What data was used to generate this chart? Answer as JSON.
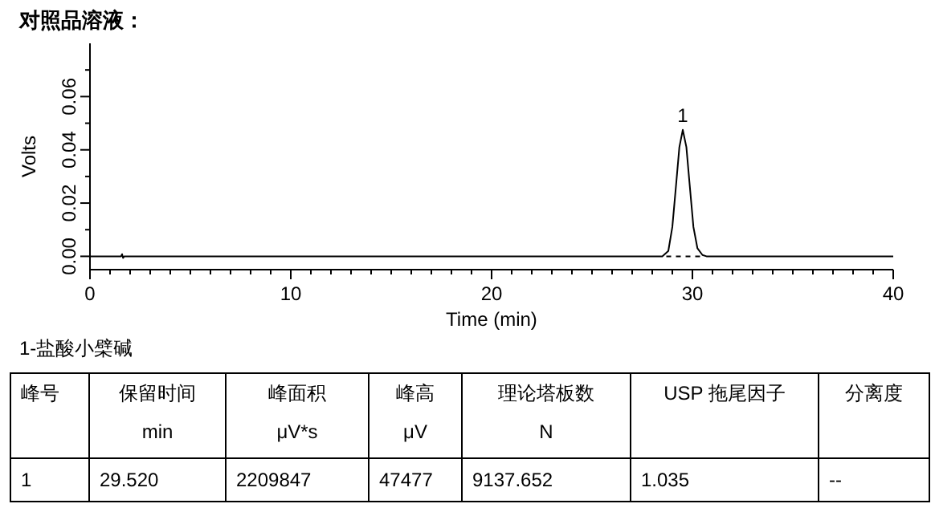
{
  "chart_data": {
    "type": "line",
    "title": "对照品溶液：",
    "xlabel": "Time (min)",
    "ylabel": "Volts",
    "xlim": [
      0,
      40
    ],
    "ylim": [
      -0.005,
      0.08
    ],
    "xticks": [
      0,
      {
        "value": 1,
        "label": null
      },
      {
        "value": 2,
        "label": null
      },
      {
        "value": 3,
        "label": null
      },
      {
        "value": 4,
        "label": null
      },
      {
        "value": 5,
        "label": null
      },
      {
        "value": 6,
        "label": null
      },
      {
        "value": 7,
        "label": null
      },
      {
        "value": 8,
        "label": null
      },
      {
        "value": 9,
        "label": null
      },
      10,
      {
        "value": 11,
        "label": null
      },
      {
        "value": 12,
        "label": null
      },
      {
        "value": 13,
        "label": null
      },
      {
        "value": 14,
        "label": null
      },
      {
        "value": 15,
        "label": null
      },
      {
        "value": 16,
        "label": null
      },
      {
        "value": 17,
        "label": null
      },
      {
        "value": 18,
        "label": null
      },
      {
        "value": 19,
        "label": null
      },
      20,
      {
        "value": 21,
        "label": null
      },
      {
        "value": 22,
        "label": null
      },
      {
        "value": 23,
        "label": null
      },
      {
        "value": 24,
        "label": null
      },
      {
        "value": 25,
        "label": null
      },
      {
        "value": 26,
        "label": null
      },
      {
        "value": 27,
        "label": null
      },
      {
        "value": 28,
        "label": null
      },
      {
        "value": 29,
        "label": null
      },
      30,
      {
        "value": 31,
        "label": null
      },
      {
        "value": 32,
        "label": null
      },
      {
        "value": 33,
        "label": null
      },
      {
        "value": 34,
        "label": null
      },
      {
        "value": 35,
        "label": null
      },
      {
        "value": 36,
        "label": null
      },
      {
        "value": 37,
        "label": null
      },
      {
        "value": 38,
        "label": null
      },
      {
        "value": 39,
        "label": null
      },
      40
    ],
    "yticks": [
      {
        "value": 0,
        "label": "0.00"
      },
      {
        "value": 0.01,
        "label": null
      },
      {
        "value": 0.02,
        "label": "0.02"
      },
      {
        "value": 0.03,
        "label": null
      },
      {
        "value": 0.04,
        "label": "0.04"
      },
      {
        "value": 0.05,
        "label": null
      },
      {
        "value": 0.06,
        "label": "0.06"
      },
      {
        "value": 0.07,
        "label": null
      }
    ],
    "grid": false,
    "marker": "none",
    "series": [
      {
        "color": "#000000",
        "line_style": "solid",
        "x": [
          0,
          1.55,
          1.6,
          1.65,
          1.7,
          28.5,
          28.8,
          29.0,
          29.2,
          29.35,
          29.52,
          29.7,
          29.85,
          30.05,
          30.25,
          30.5,
          30.7,
          40
        ],
        "values": [
          0,
          0,
          0.0008,
          -0.0006,
          0,
          0,
          0.002,
          0.011,
          0.028,
          0.041,
          0.0475,
          0.041,
          0.028,
          0.011,
          0.003,
          0.0005,
          0,
          0
        ]
      },
      {
        "color": "#000000",
        "line_style": "dashed",
        "x": [
          28.7,
          30.4
        ],
        "values": [
          0,
          0
        ]
      }
    ],
    "annotations": [
      {
        "text": "1",
        "x": 29.52,
        "y": 0.0475
      },
      "1-盐酸小檗碱",
      "峰号",
      "保留时间\nmin",
      "峰面积\nμV*s",
      "峰高\nμV",
      "理论塔板数\nN",
      "USP 拖尾因子",
      "分离度",
      "1",
      "29.520",
      "2209847",
      "47477",
      "9137.652",
      "1.035",
      "--"
    ]
  }
}
